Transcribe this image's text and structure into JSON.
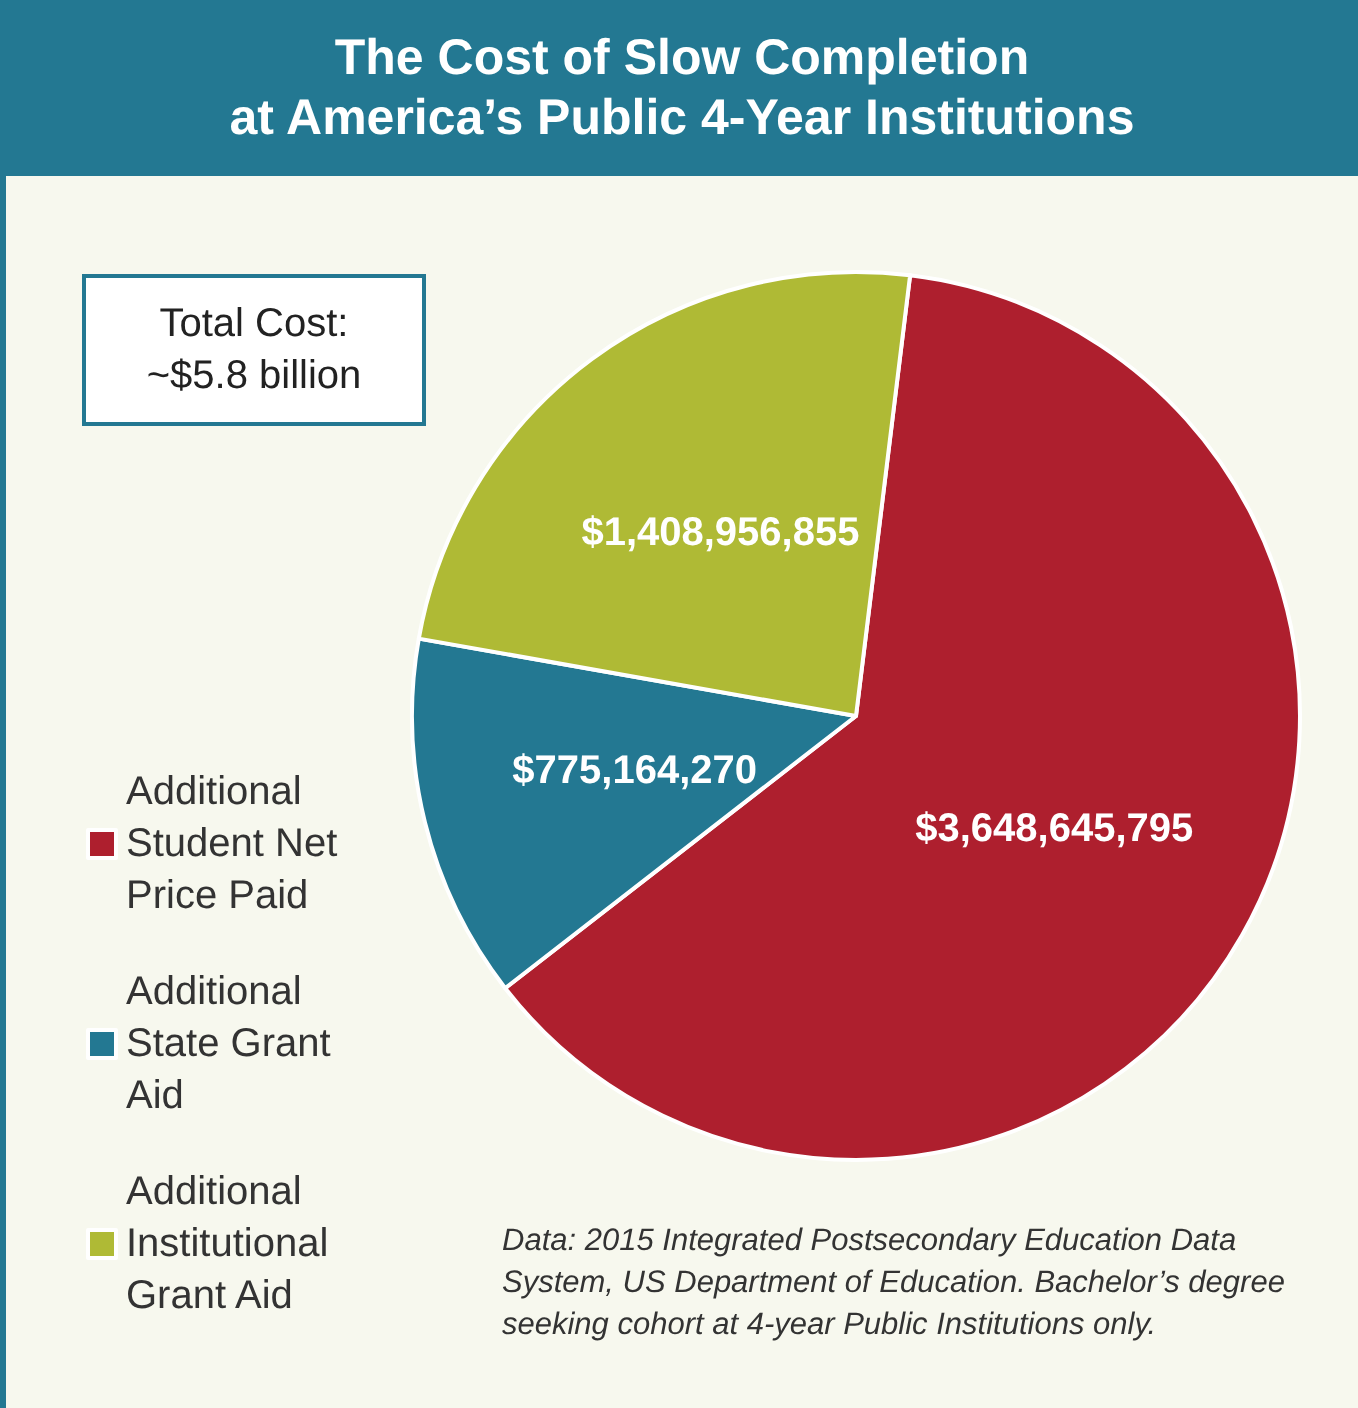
{
  "chart_data": {
    "type": "pie",
    "title": "The Cost of Slow Completion\nat America’s Public 4-Year Institutions",
    "categories": [
      "Additional Student Net Price Paid",
      "Additional State Grant Aid",
      "Additional Institutional Grant Aid"
    ],
    "values": [
      3648645795,
      775164270,
      1408956855
    ],
    "colors": [
      "#ae1f2e",
      "#237892",
      "#afba35"
    ],
    "value_labels": [
      "$3,648,645,795",
      "$775,164,270",
      "$1,408,956,855"
    ],
    "legend": "left",
    "annotations": [
      "Total Cost:\n~$5.8 billion",
      "Data: 2015 Integrated Postsecondary Education Data System, US Department of Education. Bachelor’s degree seeking cohort at 4-year Public Institutions only."
    ]
  }
}
